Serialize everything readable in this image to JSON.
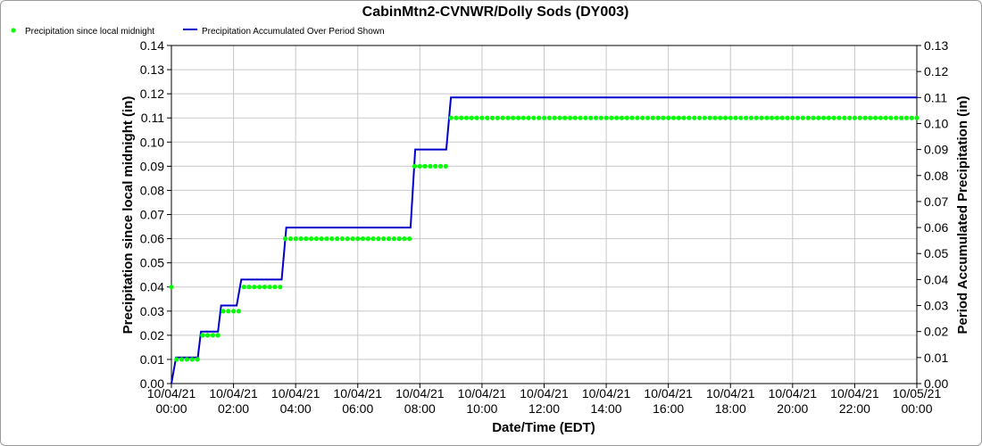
{
  "chart_data": {
    "type": "line",
    "title": "CabinMtn2-CVNWR/Dolly Sods (DY003)",
    "xlabel": "Date/Time (EDT)",
    "ylabel_left": "Precipitation since local midnight (in)",
    "ylabel_right": "Period Accumulated Precipitation (in)",
    "x_range_hours": [
      0,
      24
    ],
    "ylim_left": [
      0,
      0.14
    ],
    "ylim_right": [
      0,
      0.13
    ],
    "grid": true,
    "legend_position": "top-left",
    "x_tick_labels": [
      {
        "date": "10/04/21",
        "time": "00:00"
      },
      {
        "date": "10/04/21",
        "time": "02:00"
      },
      {
        "date": "10/04/21",
        "time": "04:00"
      },
      {
        "date": "10/04/21",
        "time": "06:00"
      },
      {
        "date": "10/04/21",
        "time": "08:00"
      },
      {
        "date": "10/04/21",
        "time": "10:00"
      },
      {
        "date": "10/04/21",
        "time": "12:00"
      },
      {
        "date": "10/04/21",
        "time": "14:00"
      },
      {
        "date": "10/04/21",
        "time": "16:00"
      },
      {
        "date": "10/04/21",
        "time": "18:00"
      },
      {
        "date": "10/04/21",
        "time": "20:00"
      },
      {
        "date": "10/04/21",
        "time": "22:00"
      },
      {
        "date": "10/05/21",
        "time": "00:00"
      }
    ],
    "y_left_ticks": [
      "0.00",
      "0.01",
      "0.02",
      "0.03",
      "0.04",
      "0.05",
      "0.06",
      "0.07",
      "0.08",
      "0.09",
      "0.10",
      "0.11",
      "0.12",
      "0.13",
      "0.14"
    ],
    "y_right_ticks": [
      "0.00",
      "0.01",
      "0.02",
      "0.03",
      "0.04",
      "0.05",
      "0.06",
      "0.07",
      "0.08",
      "0.09",
      "0.10",
      "0.11",
      "0.12",
      "0.13"
    ],
    "series": [
      {
        "name": "Precipitation since local midnight",
        "kind": "points",
        "axis": "left",
        "color": "#00ff00",
        "interval_hours": 0.1667,
        "segments": [
          {
            "from": 0.0,
            "to": 0.0,
            "value": 0.04
          },
          {
            "from": 0.1667,
            "to": 0.8333,
            "value": 0.01
          },
          {
            "from": 1.0,
            "to": 1.5,
            "value": 0.02
          },
          {
            "from": 1.6667,
            "to": 2.1667,
            "value": 0.03
          },
          {
            "from": 2.3333,
            "to": 3.5,
            "value": 0.04
          },
          {
            "from": 3.6667,
            "to": 7.6667,
            "value": 0.06
          },
          {
            "from": 7.8333,
            "to": 8.8333,
            "value": 0.09
          },
          {
            "from": 9.0,
            "to": 24.0,
            "value": 0.11
          }
        ]
      },
      {
        "name": "Precipitation Accumulated Over Period Shown",
        "kind": "step-line",
        "axis": "right",
        "color": "#0000cc",
        "points": [
          [
            0.0,
            0.0
          ],
          [
            0.15,
            0.01
          ],
          [
            0.85,
            0.01
          ],
          [
            0.95,
            0.02
          ],
          [
            1.5,
            0.02
          ],
          [
            1.6,
            0.03
          ],
          [
            2.1,
            0.03
          ],
          [
            2.25,
            0.04
          ],
          [
            3.55,
            0.04
          ],
          [
            3.7,
            0.06
          ],
          [
            7.7,
            0.06
          ],
          [
            7.85,
            0.09
          ],
          [
            8.85,
            0.09
          ],
          [
            9.0,
            0.11
          ],
          [
            24.0,
            0.11
          ]
        ]
      }
    ]
  }
}
